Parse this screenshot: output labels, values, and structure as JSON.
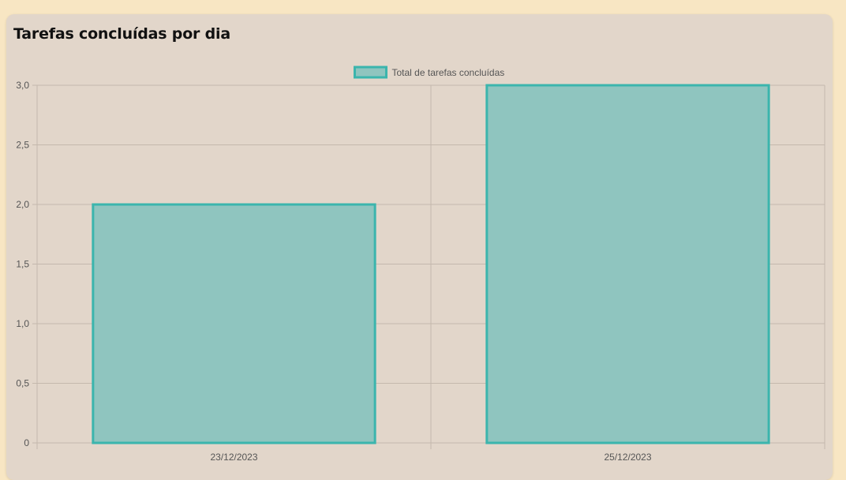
{
  "card": {
    "title": "Tarefas concluídas por dia"
  },
  "chart_data": {
    "type": "bar",
    "categories": [
      "23/12/2023",
      "25/12/2023"
    ],
    "series": [
      {
        "name": "Total de tarefas concluídas",
        "values": [
          2,
          3
        ]
      }
    ],
    "ylim": [
      0,
      3
    ],
    "yticks": [
      "0",
      "0,5",
      "1,0",
      "1,5",
      "2,0",
      "2,5",
      "3,0"
    ],
    "xlabel": "",
    "ylabel": "",
    "grid": true,
    "legend_position": "top-center",
    "colors": {
      "bar_fill": "#8fc5bf",
      "bar_border": "#3bb5ad",
      "grid": "#c4b8ad"
    }
  }
}
